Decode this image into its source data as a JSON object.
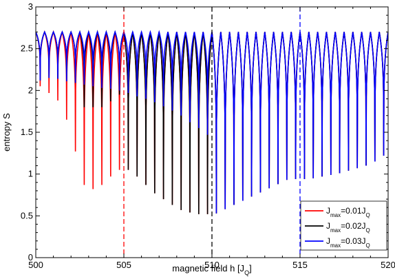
{
  "chart_data": {
    "type": "line",
    "xlabel": {
      "main": "magnetic field h [J",
      "sub": "Q",
      "tail": "]"
    },
    "ylabel": "entropy S",
    "xlim": [
      500,
      520
    ],
    "ylim": [
      0,
      3
    ],
    "x_ticks": [
      "500",
      "505",
      "510",
      "515",
      "520"
    ],
    "y_ticks": [
      "0",
      "0.5",
      "1",
      "1.5",
      "2",
      "2.5",
      "3"
    ],
    "grid": false,
    "legend_position": "bottom-right",
    "oscillation": {
      "period": 0.5,
      "phase": 0.25,
      "peak": 2.7
    },
    "series": [
      {
        "name": "J_max=0.01J_Q",
        "label_main": "J",
        "label_sub": "max",
        "label_mid": "=0.01J",
        "label_sub2": "Q",
        "color": "#ff0000",
        "dip_x": [
          500.25,
          500.75,
          501.25,
          501.75,
          502.25,
          502.75,
          503.25,
          503.75,
          504.25,
          504.75
        ],
        "dip_y": [
          2.05,
          1.97,
          1.88,
          1.65,
          1.27,
          0.87,
          0.82,
          0.87,
          0.97,
          1.05
        ],
        "marker_x": 505
      },
      {
        "name": "J_max=0.02J_Q",
        "label_main": "J",
        "label_sub": "max",
        "label_mid": "=0.02J",
        "label_sub2": "Q",
        "color": "#000000",
        "dip_x": [
          505.25,
          505.75,
          506.25,
          506.75,
          507.25,
          507.75,
          508.25,
          508.75,
          509.25,
          509.75
        ],
        "dip_y": [
          1.05,
          0.97,
          0.87,
          0.77,
          0.7,
          0.63,
          0.57,
          0.54,
          0.52,
          0.52
        ],
        "marker_x": 510
      },
      {
        "name": "J_max=0.03J_Q",
        "label_main": "J",
        "label_sub": "max",
        "label_mid": "=0.03J",
        "label_sub2": "Q",
        "color": "#0000ff",
        "dip_x": [
          510.25,
          510.75,
          511.25,
          511.75,
          512.25,
          512.75,
          513.25,
          513.75,
          514.25,
          514.75,
          515.25,
          515.75,
          516.25,
          516.75,
          517.25,
          517.75,
          518.25,
          518.75,
          519.25,
          519.75
        ],
        "dip_y": [
          0.53,
          0.58,
          0.63,
          0.68,
          0.73,
          0.78,
          0.83,
          0.88,
          0.93,
          0.94,
          0.94,
          0.95,
          0.97,
          0.99,
          1.01,
          1.04,
          1.07,
          1.1,
          1.15,
          1.22
        ],
        "marker_x": 515
      }
    ],
    "upper_envelope": {
      "dip_x": [
        500.25,
        500.75,
        501.25,
        501.75,
        502.25,
        502.75,
        503.25,
        503.75,
        504.25,
        504.75,
        505.25,
        505.75,
        506.25,
        506.75,
        507.25,
        507.75,
        508.25,
        508.75,
        509.25,
        509.75
      ],
      "dip_y": [
        2.12,
        2.15,
        2.14,
        2.11,
        2.09,
        2.07,
        2.05,
        2.03,
        2.02,
        2.0,
        1.97,
        1.93,
        1.9,
        1.86,
        1.81,
        1.76,
        1.7,
        1.62,
        1.55,
        1.47
      ]
    }
  }
}
